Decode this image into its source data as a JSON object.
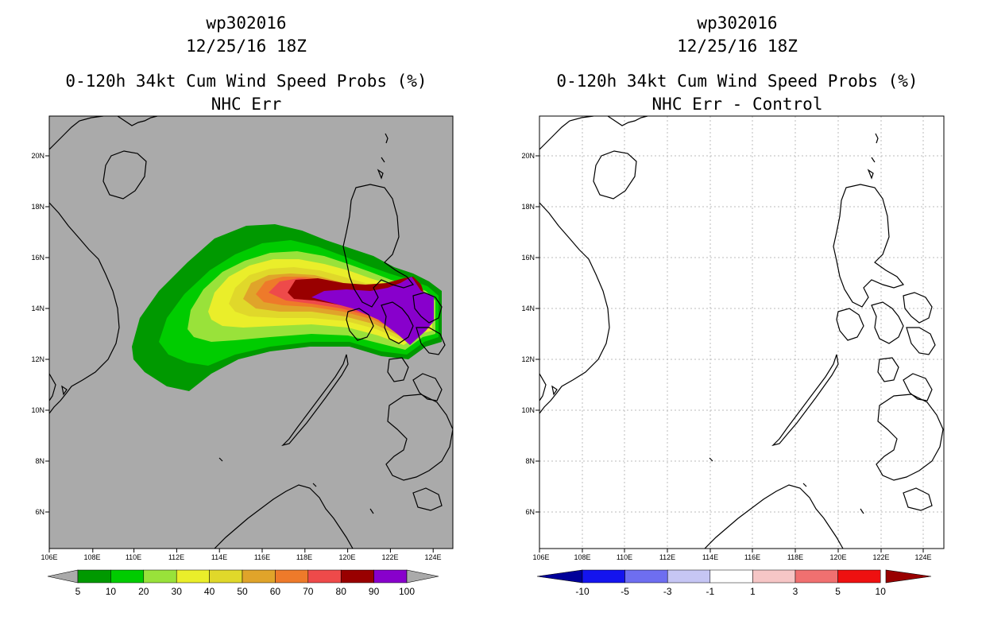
{
  "left_panel": {
    "storm_id": "wp302016",
    "datetime": "12/25/16 18Z",
    "product_title": "0-120h 34kt Cum Wind Speed Probs (%)",
    "subtitle": "NHC Err",
    "colors": {
      "background": "#aaaaaa",
      "levels": [
        "#009900",
        "#00cc00",
        "#99e23a",
        "#eaee2a",
        "#e0d82a",
        "#e0a42a",
        "#ee7a2a",
        "#ee4a4a",
        "#990000",
        "#8800cc"
      ]
    },
    "colorbar": {
      "labels": [
        "5",
        "10",
        "20",
        "30",
        "40",
        "50",
        "60",
        "70",
        "80",
        "90",
        "100"
      ]
    }
  },
  "right_panel": {
    "storm_id": "wp302016",
    "datetime": "12/25/16 18Z",
    "product_title": "0-120h 34kt Cum Wind Speed Probs (%)",
    "subtitle": "NHC Err - Control",
    "colors": {
      "background": "#ffffff",
      "levels": [
        "#000099",
        "#1414ee",
        "#6e6ef0",
        "#c6c6f4",
        "#ffffff",
        "#f6c6c6",
        "#f07070",
        "#ee1010",
        "#990000"
      ]
    },
    "colorbar": {
      "labels": [
        "-10",
        "-5",
        "-3",
        "-1",
        "1",
        "3",
        "5",
        "10"
      ]
    }
  },
  "map_axes": {
    "lon_labels": [
      "106E",
      "108E",
      "110E",
      "112E",
      "114E",
      "116E",
      "118E",
      "120E",
      "122E",
      "124E"
    ],
    "lat_labels": [
      "20N",
      "18N",
      "16N",
      "14N",
      "12N",
      "10N",
      "8N",
      "6N"
    ]
  }
}
